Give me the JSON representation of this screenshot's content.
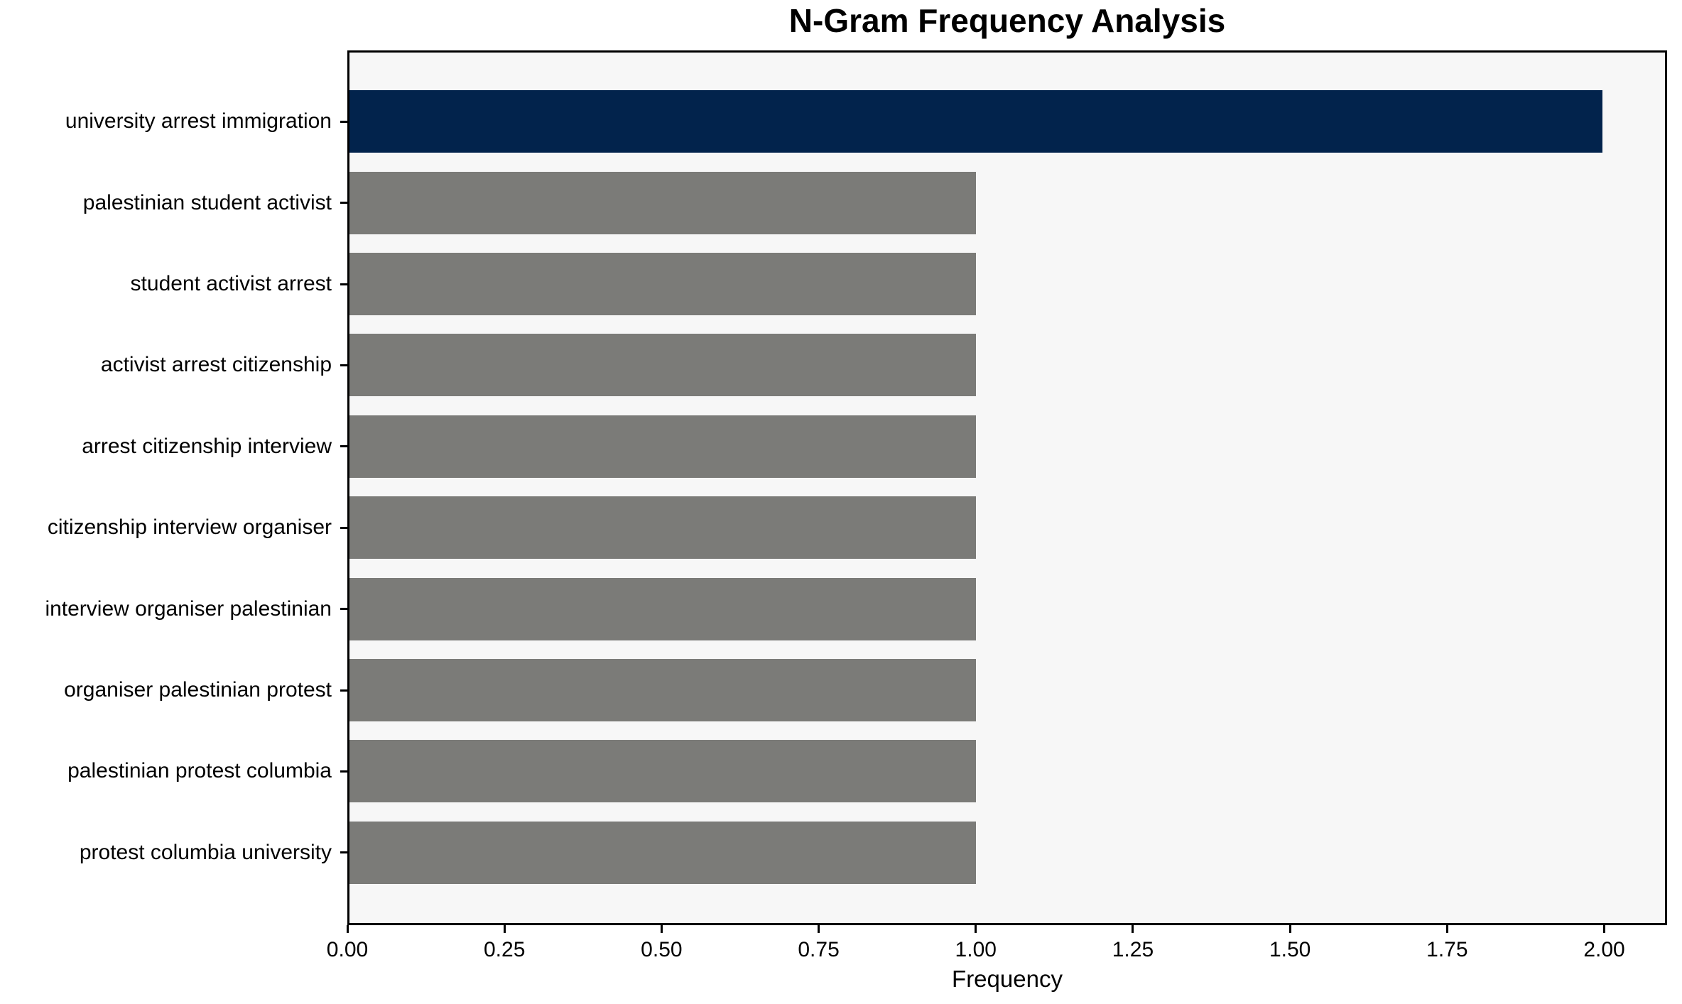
{
  "chart_data": {
    "type": "bar",
    "orientation": "horizontal",
    "title": "N-Gram Frequency Analysis",
    "xlabel": "Frequency",
    "ylabel": "",
    "categories": [
      "university arrest immigration",
      "palestinian student activist",
      "student activist arrest",
      "activist arrest citizenship",
      "arrest citizenship interview",
      "citizenship interview organiser",
      "interview organiser palestinian",
      "organiser palestinian protest",
      "palestinian protest columbia",
      "protest columbia university"
    ],
    "values": [
      2,
      1,
      1,
      1,
      1,
      1,
      1,
      1,
      1,
      1
    ],
    "xlim": [
      0,
      2.1
    ],
    "xticks": [
      0,
      0.25,
      0.5,
      0.75,
      1.0,
      1.25,
      1.5,
      1.75,
      2.0
    ],
    "xtick_labels": [
      "0.00",
      "0.25",
      "0.50",
      "0.75",
      "1.00",
      "1.25",
      "1.50",
      "1.75",
      "2.00"
    ],
    "grid": false,
    "legend": "none",
    "colors": {
      "highlight_bar": "#02234c",
      "default_bar": "#7b7b78",
      "plot_background": "#f7f7f7",
      "figure_background": "#ffffff",
      "axis": "#000000",
      "text": "#000000"
    },
    "bar_colors": [
      "#02234c",
      "#7b7b78",
      "#7b7b78",
      "#7b7b78",
      "#7b7b78",
      "#7b7b78",
      "#7b7b78",
      "#7b7b78",
      "#7b7b78",
      "#7b7b78"
    ]
  }
}
